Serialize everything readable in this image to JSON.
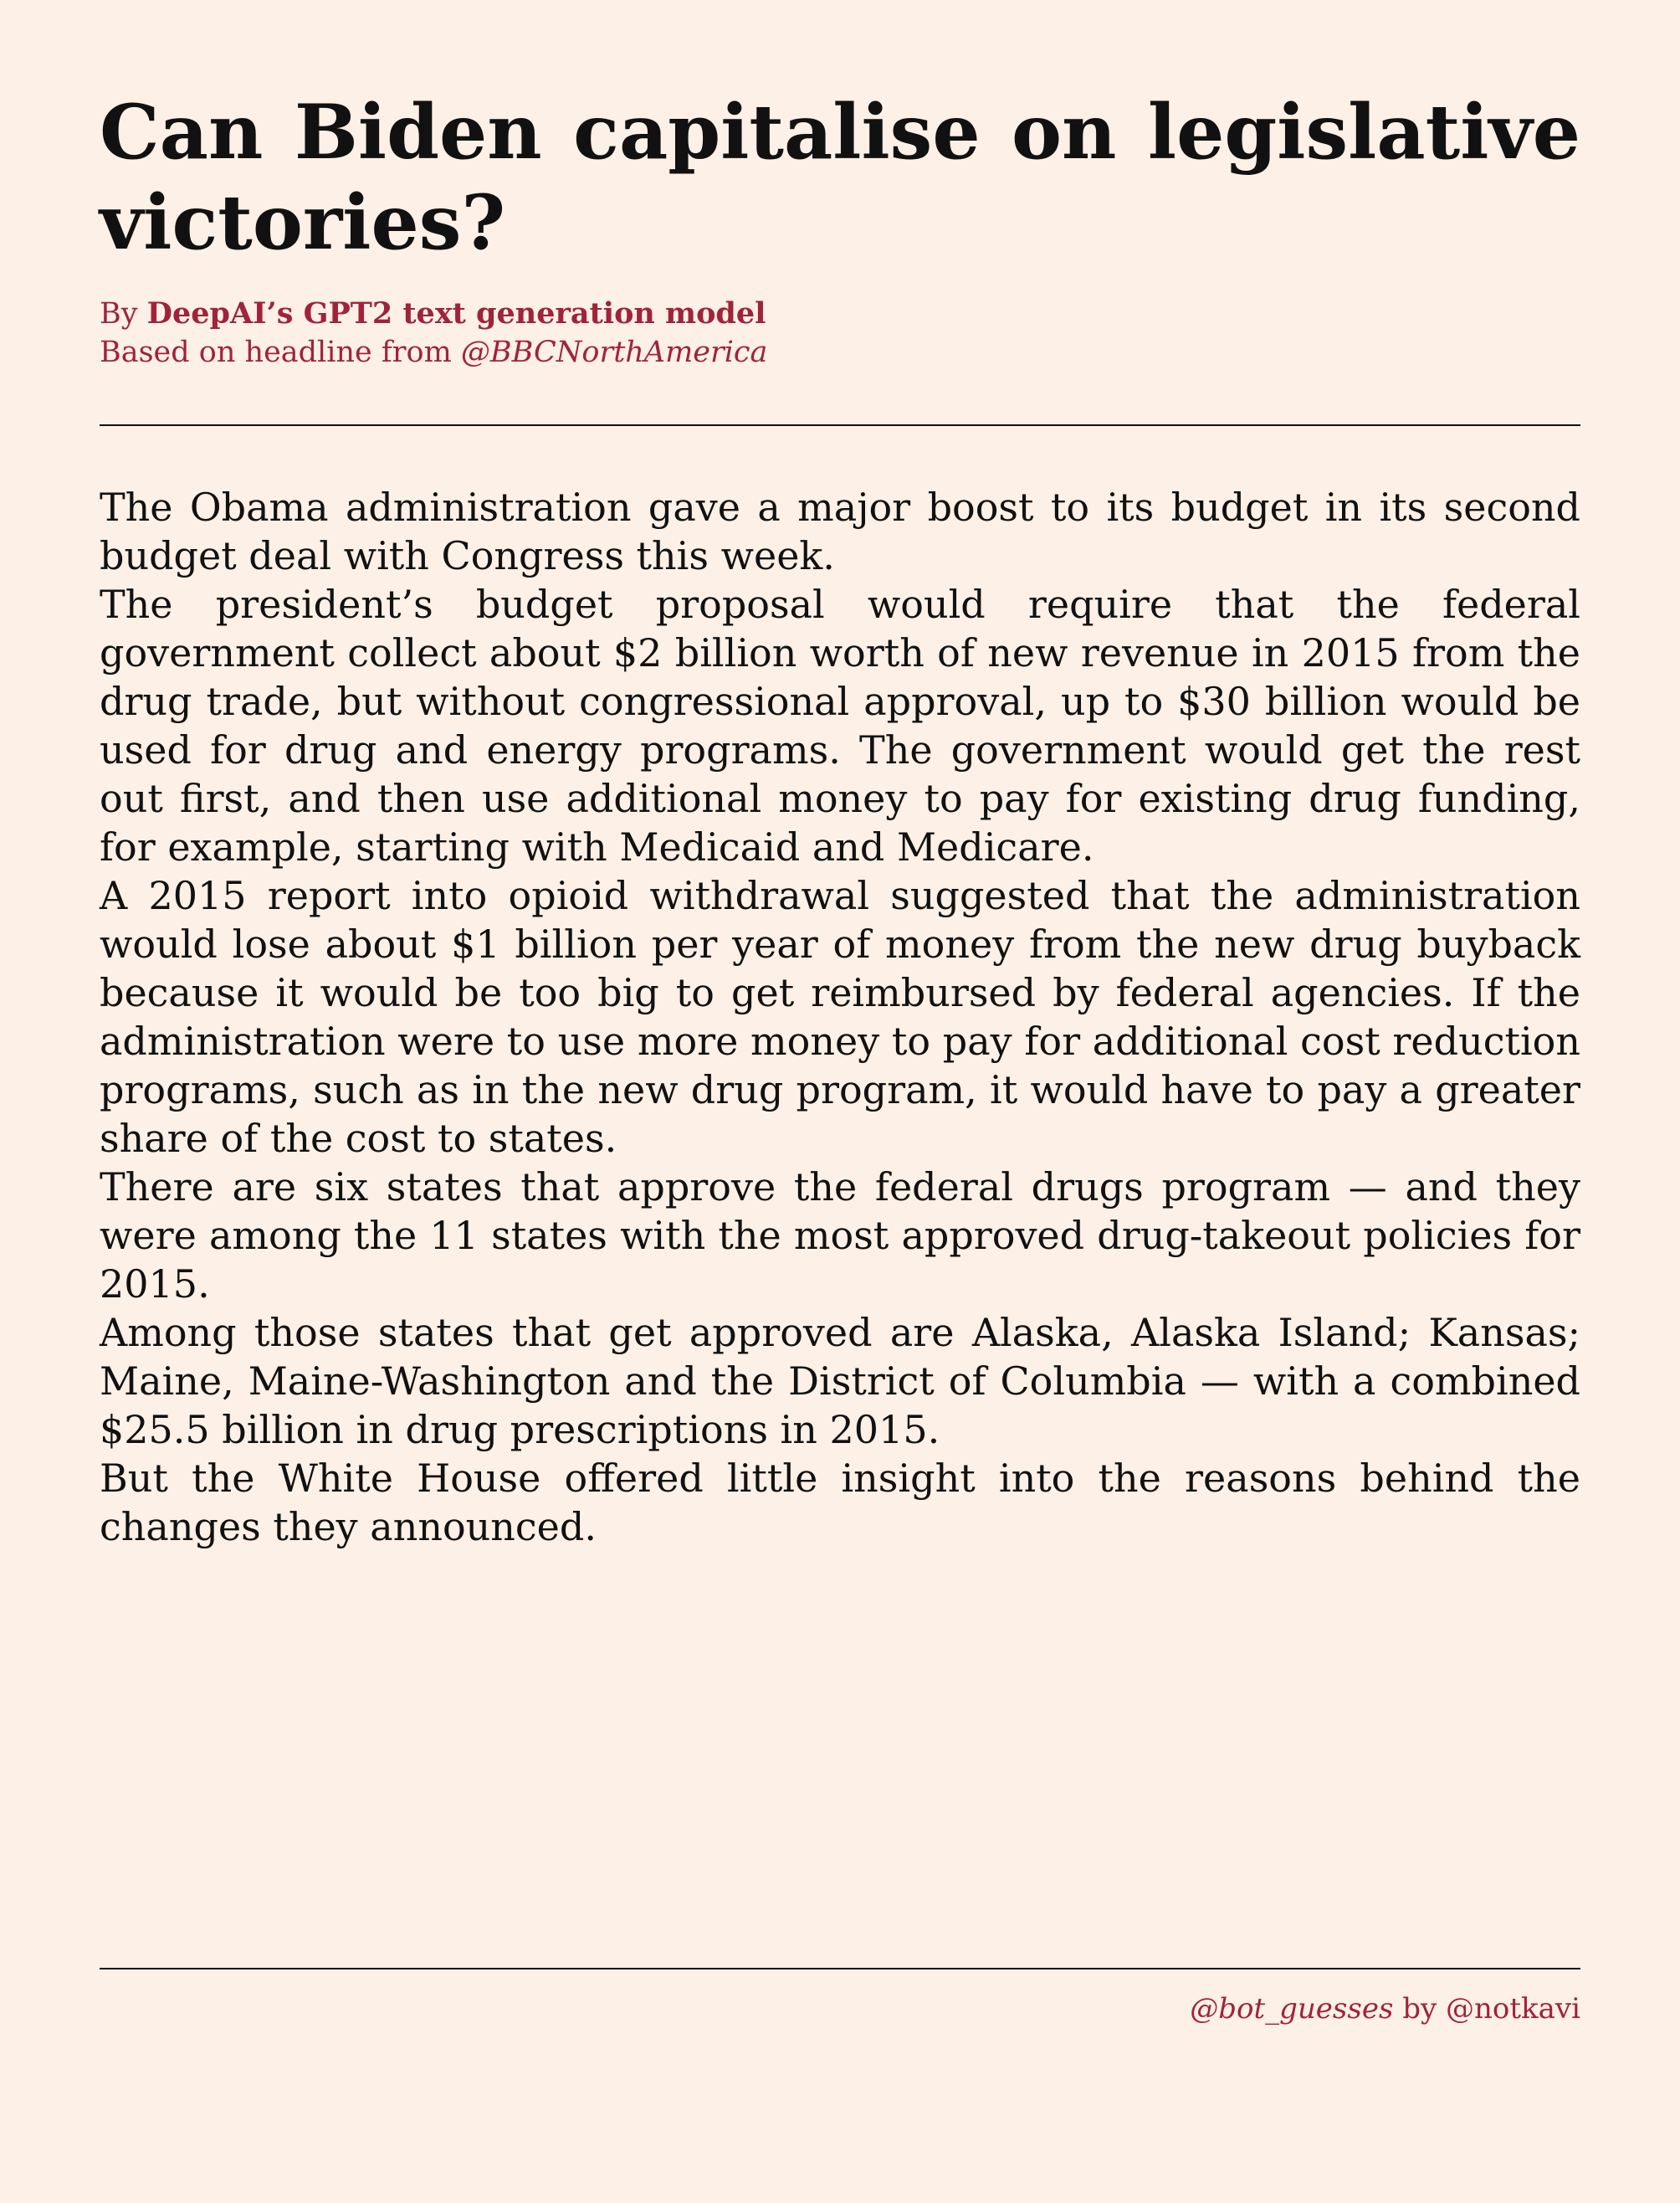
{
  "headline": "Can Biden capitalise on legislative victories?",
  "byline": {
    "prefix": "By ",
    "author": "DeepAI’s GPT2 text generation model",
    "source_prefix": "Based on headline from ",
    "source_handle": "@BBCNorthAmerica"
  },
  "body": {
    "paragraphs": [
      "The Obama administration gave a major boost to its budget in its second budget deal with Congress this week.",
      "The president’s budget proposal would require that the federal government collect about $2 billion worth of new revenue in 2015 from the drug trade, but without congressional approval, up to $30 billion would be used for drug and energy programs. The government would get the rest out first, and then use additional money to pay for existing drug funding, for example, starting with Medicaid and Medicare.",
      "A 2015 report into opioid withdrawal suggested that the administration would lose about $1 billion per year of money from the new drug buyback because it would be too big to get reimbursed by federal agencies. If the administration were to use more money to pay for additional cost reduction programs, such as in the new drug program, it would have to pay a greater share of the cost to states.",
      "There are six states that approve the federal drugs program — and they were among the 11 states with the most approved drug-takeout policies for 2015.",
      "Among those states that get approved are Alaska, Alaska Island; Kansas; Maine, Maine-Washington and the District of Columbia — with a combined $25.5 billion in drug prescriptions in 2015.",
      "But the White House offered little insight into the reasons behind the changes they announced."
    ]
  },
  "footer": {
    "bot_handle": "@bot_guesses",
    "by_text": " by ",
    "author_handle": "@notkavi"
  },
  "colors": {
    "background": "#fdf0e6",
    "accent": "#a0233a",
    "text": "#111111"
  }
}
